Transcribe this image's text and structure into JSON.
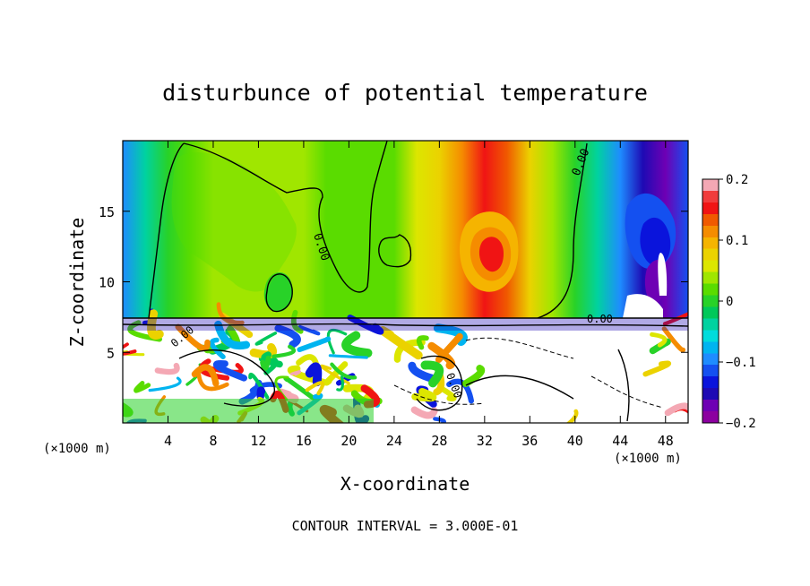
{
  "chart_data": {
    "type": "heatmap",
    "title": "disturbunce of potential temperature",
    "xlabel": "X-coordinate",
    "ylabel": "Z-coordinate",
    "x_unit": "(×1000 m)",
    "z_unit": "(×1000 m)",
    "footer": "CONTOUR INTERVAL = 3.000E-01",
    "xlim": [
      0,
      50
    ],
    "ylim": [
      0,
      20
    ],
    "x_ticks": [
      4,
      8,
      12,
      16,
      20,
      24,
      28,
      32,
      36,
      40,
      44,
      48
    ],
    "y_ticks": [
      5,
      10,
      15
    ],
    "contour_labels": [
      "0.00",
      "0.00",
      "0.00",
      "0.00",
      "0.00"
    ],
    "colorbar": {
      "range": [
        -0.2,
        0.2
      ],
      "tick_values": [
        0.2,
        0.1,
        0,
        -0.1,
        -0.2
      ],
      "tick_labels": [
        "0.2",
        "0.1",
        "0",
        "−0.1",
        "−0.2"
      ],
      "colors": [
        "#f4a8b4",
        "#f03c3c",
        "#f01414",
        "#f05a00",
        "#f58c00",
        "#f5b400",
        "#ebd200",
        "#dce600",
        "#a0e600",
        "#5adc00",
        "#28d228",
        "#00c85a",
        "#00d2a0",
        "#00dcdc",
        "#00b4f0",
        "#1e8cff",
        "#1450f0",
        "#0a14dc",
        "#1e0ab4",
        "#6e00b4",
        "#8c00a0"
      ]
    },
    "upper_layer_profile": {
      "x": [
        0,
        2,
        4,
        6,
        8,
        10,
        12,
        14,
        16,
        18,
        20,
        22,
        24,
        26,
        28,
        30,
        32,
        34,
        36,
        38,
        40,
        42,
        44,
        46,
        48,
        50
      ],
      "theta_prime": [
        -0.1,
        -0.04,
        0.0,
        0.02,
        0.03,
        0.03,
        0.03,
        0.03,
        0.03,
        0.02,
        0.01,
        0.01,
        0.02,
        0.05,
        0.08,
        0.12,
        0.15,
        0.13,
        0.08,
        0.03,
        0.0,
        -0.04,
        -0.1,
        -0.15,
        -0.18,
        -0.12
      ]
    }
  }
}
